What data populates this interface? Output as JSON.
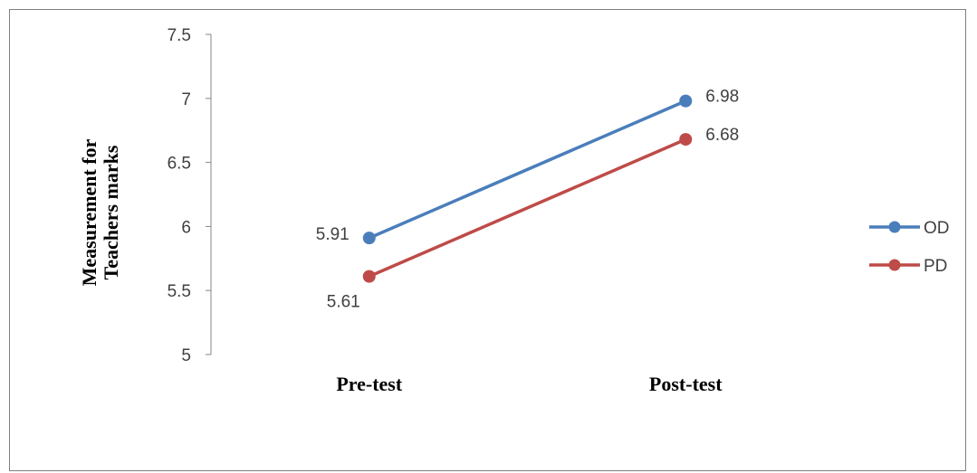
{
  "chart_data": {
    "type": "line",
    "title": "",
    "xlabel": "",
    "ylabel_lines": [
      "Measurement for",
      "Teachers  marks"
    ],
    "categories": [
      "Pre-test",
      "Post-test"
    ],
    "ylim": [
      5,
      7.5
    ],
    "yticks": [
      "5",
      "5.5",
      "6",
      "6.5",
      "7",
      "7.5"
    ],
    "grid": false,
    "legend_position": "right",
    "series": [
      {
        "name": "OD",
        "color": "#4a7ebb",
        "values": [
          5.91,
          6.98
        ],
        "labels": [
          "5.91",
          "6.98"
        ]
      },
      {
        "name": "PD",
        "color": "#be4b48",
        "values": [
          5.61,
          6.68
        ],
        "labels": [
          "5.61",
          "6.68"
        ]
      }
    ]
  }
}
